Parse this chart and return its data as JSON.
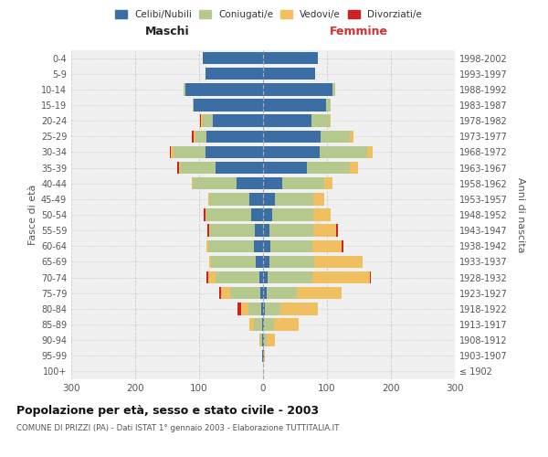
{
  "age_groups": [
    "100+",
    "95-99",
    "90-94",
    "85-89",
    "80-84",
    "75-79",
    "70-74",
    "65-69",
    "60-64",
    "55-59",
    "50-54",
    "45-49",
    "40-44",
    "35-39",
    "30-34",
    "25-29",
    "20-24",
    "15-19",
    "10-14",
    "5-9",
    "0-4"
  ],
  "birth_years": [
    "≤ 1902",
    "1903-1907",
    "1908-1912",
    "1913-1917",
    "1918-1922",
    "1923-1927",
    "1928-1932",
    "1933-1937",
    "1938-1942",
    "1943-1947",
    "1948-1952",
    "1953-1957",
    "1958-1962",
    "1963-1967",
    "1968-1972",
    "1973-1977",
    "1978-1982",
    "1983-1987",
    "1988-1992",
    "1993-1997",
    "1998-2002"
  ],
  "males": {
    "celibi": [
      0,
      1,
      1,
      2,
      3,
      4,
      6,
      12,
      14,
      13,
      18,
      22,
      42,
      75,
      90,
      88,
      78,
      108,
      122,
      90,
      94
    ],
    "coniugati": [
      0,
      0,
      3,
      12,
      20,
      48,
      68,
      70,
      72,
      70,
      70,
      62,
      68,
      55,
      50,
      18,
      16,
      2,
      2,
      0,
      0
    ],
    "vedovi": [
      0,
      0,
      2,
      8,
      12,
      14,
      12,
      2,
      2,
      2,
      2,
      2,
      2,
      2,
      4,
      3,
      3,
      0,
      0,
      0,
      0
    ],
    "divorziati": [
      0,
      0,
      0,
      0,
      5,
      2,
      3,
      0,
      0,
      2,
      3,
      0,
      0,
      2,
      2,
      2,
      2,
      0,
      0,
      0,
      0
    ]
  },
  "females": {
    "nubili": [
      0,
      1,
      2,
      2,
      3,
      5,
      7,
      10,
      12,
      10,
      14,
      18,
      30,
      68,
      88,
      90,
      76,
      98,
      108,
      82,
      86
    ],
    "coniugate": [
      0,
      0,
      3,
      15,
      24,
      48,
      70,
      70,
      65,
      68,
      65,
      60,
      65,
      68,
      75,
      46,
      28,
      8,
      5,
      0,
      0
    ],
    "vedove": [
      0,
      2,
      14,
      38,
      58,
      70,
      90,
      76,
      46,
      36,
      26,
      18,
      14,
      12,
      8,
      5,
      2,
      0,
      0,
      0,
      0
    ],
    "divorziate": [
      0,
      0,
      0,
      0,
      0,
      0,
      2,
      0,
      2,
      3,
      0,
      0,
      0,
      0,
      0,
      0,
      0,
      0,
      0,
      0,
      0
    ]
  },
  "colors": {
    "celibi_nubili": "#3a6ea5",
    "coniugati_e": "#b5c98e",
    "vedovi_e": "#f0c060",
    "divorziati_e": "#cc2222"
  },
  "title": "Popolazione per età, sesso e stato civile - 2003",
  "subtitle": "COMUNE DI PRIZZI (PA) - Dati ISTAT 1° gennaio 2003 - Elaborazione TUTTITALIA.IT",
  "ylabel": "Fasce di età",
  "ylabel_right": "Anni di nascita",
  "xlabel_maschi": "Maschi",
  "xlabel_femmine": "Femmine",
  "xlim": 300,
  "bg_color": "#f0f0f0",
  "grid_color": "#cccccc"
}
